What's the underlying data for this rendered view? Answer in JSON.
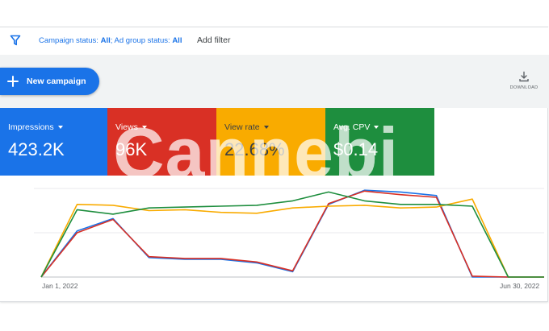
{
  "filter_bar": {
    "icon": "filter-icon",
    "campaign_status_label": "Campaign status:",
    "campaign_status_value": "All",
    "separator": ";",
    "ad_group_status_label": "Ad group status:",
    "ad_group_status_value": "All",
    "add_filter": "Add filter"
  },
  "toolbar": {
    "new_campaign_label": "New campaign",
    "new_campaign_icon": "plus-icon",
    "download_label": "DOWNLOAD",
    "download_icon": "download-icon"
  },
  "metrics": [
    {
      "label": "Impressions",
      "value": "423.2K",
      "color": "#1a73e8"
    },
    {
      "label": "Views",
      "value": "96K",
      "color": "#d93025"
    },
    {
      "label": "View rate",
      "value": "22.68%",
      "color": "#f9ab00"
    },
    {
      "label": "Avg. CPV",
      "value": "$0.14",
      "color": "#1e8e3e"
    }
  ],
  "watermark": "Cannebi",
  "chart_data": {
    "type": "line",
    "x_start_label": "Jan 1, 2022",
    "x_end_label": "Jun 30, 2022",
    "grid": true,
    "y_normalized": true,
    "series": [
      {
        "color": "#1a73e8",
        "values": [
          0,
          0.52,
          0.66,
          0.22,
          0.2,
          0.2,
          0.16,
          0.06,
          0.82,
          0.98,
          0.96,
          0.92,
          0,
          0,
          0
        ]
      },
      {
        "color": "#d93025",
        "values": [
          0,
          0.5,
          0.65,
          0.23,
          0.21,
          0.21,
          0.17,
          0.07,
          0.83,
          0.97,
          0.93,
          0.9,
          0.01,
          0,
          0
        ]
      },
      {
        "color": "#f9ab00",
        "values": [
          0,
          0.82,
          0.81,
          0.75,
          0.76,
          0.73,
          0.72,
          0.78,
          0.8,
          0.81,
          0.78,
          0.79,
          0.88,
          0,
          0
        ]
      },
      {
        "color": "#1e8e3e",
        "values": [
          0,
          0.76,
          0.71,
          0.78,
          0.79,
          0.8,
          0.81,
          0.86,
          0.96,
          0.86,
          0.82,
          0.82,
          0.8,
          0,
          0
        ]
      }
    ]
  }
}
